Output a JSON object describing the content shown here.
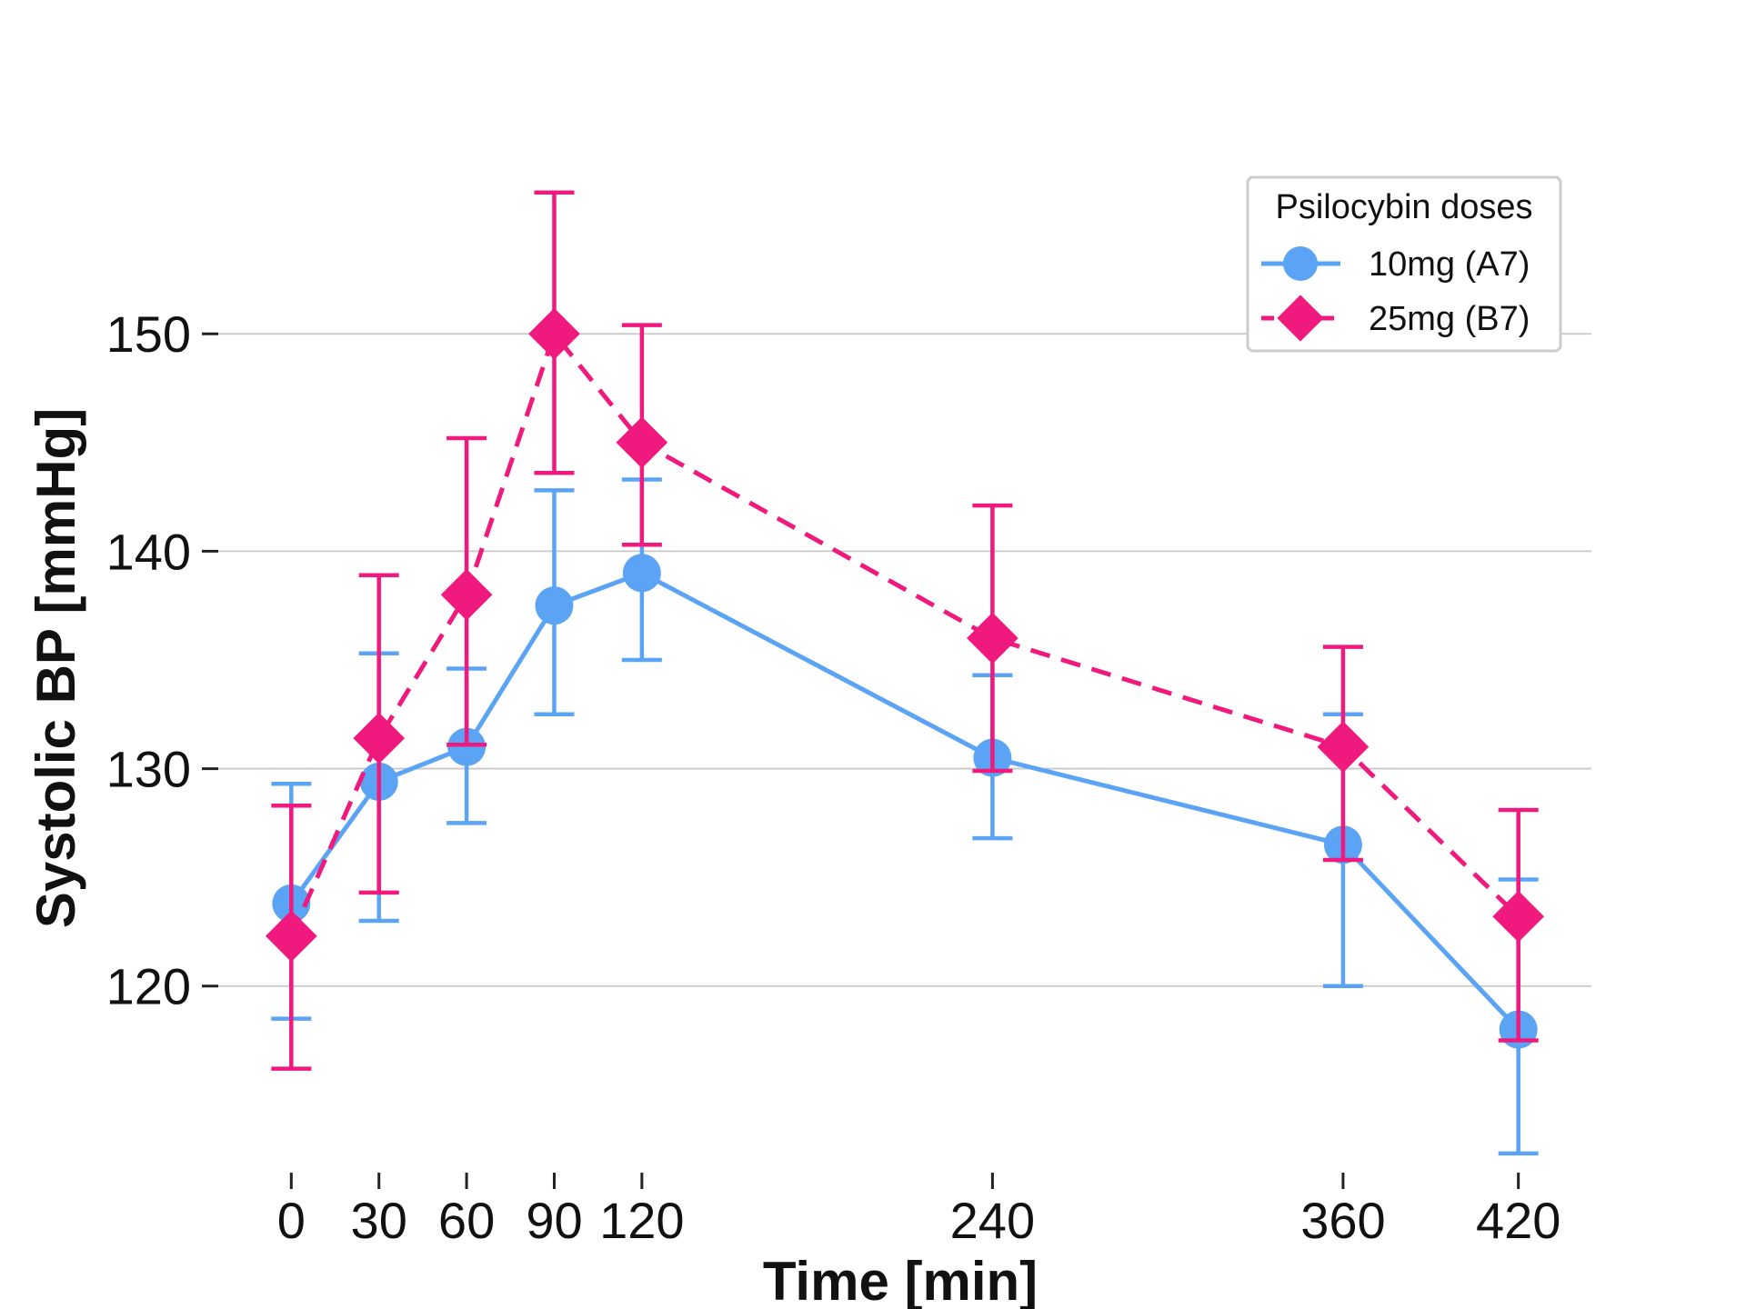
{
  "chart_data": {
    "type": "line",
    "title": "",
    "xlabel": "Time [min]",
    "ylabel": "Systolic BP [mmHg]",
    "x": [
      0,
      30,
      60,
      90,
      120,
      240,
      360,
      420
    ],
    "x_ticks": [
      "0",
      "30",
      "60",
      "90",
      "120",
      "240",
      "360",
      "420"
    ],
    "y_ticks": [
      "120",
      "130",
      "140",
      "150"
    ],
    "xlim": [
      -25,
      445
    ],
    "ylim": [
      111,
      159.5
    ],
    "grid": "horizontal",
    "legend": {
      "title": "Psilocybin doses",
      "placement": "top-right"
    },
    "series": [
      {
        "name": "10mg (A7)",
        "color": "#5ba3f5",
        "marker": "circle",
        "line_style": "solid",
        "values": [
          123.8,
          129.4,
          131.0,
          137.5,
          139.0,
          130.5,
          126.5,
          118.0
        ],
        "err_low": [
          118.5,
          123.0,
          127.5,
          132.5,
          135.0,
          126.8,
          120.0,
          112.3
        ],
        "err_high": [
          129.3,
          135.3,
          134.6,
          142.8,
          143.3,
          134.3,
          132.5,
          124.9
        ]
      },
      {
        "name": "25mg (B7)",
        "color": "#f0197d",
        "marker": "diamond",
        "line_style": "dashed",
        "values": [
          122.3,
          131.4,
          138.0,
          150.0,
          145.0,
          136.0,
          131.0,
          123.2
        ],
        "err_low": [
          116.2,
          124.3,
          131.1,
          143.6,
          140.3,
          129.9,
          125.8,
          117.5
        ],
        "err_high": [
          128.3,
          138.9,
          145.2,
          156.5,
          150.4,
          142.1,
          135.6,
          128.1
        ]
      }
    ]
  }
}
